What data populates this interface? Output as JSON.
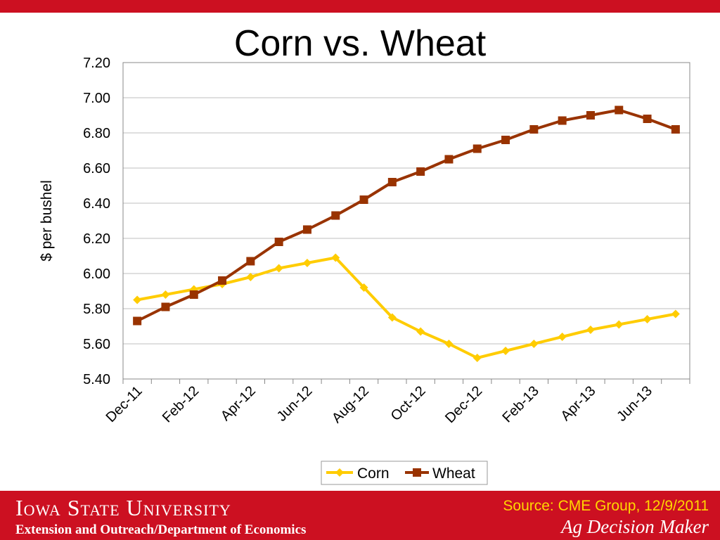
{
  "slide": {
    "title": "Corn vs. Wheat",
    "university": "Iowa State University",
    "department": "Extension and Outreach/Department of Economics",
    "source": "Source: CME Group, 12/9/2011",
    "brand": "Ag Decision Maker"
  },
  "colors": {
    "accent_red": "#cc1021",
    "corn": "#ffcc00",
    "wheat": "#993300",
    "source_text": "#ffd700"
  },
  "chart_data": {
    "type": "line",
    "title": "Corn vs. Wheat",
    "ylabel": "$ per bushel",
    "xlabel": "",
    "ylim": [
      5.4,
      7.2
    ],
    "yticks": [
      "7.20",
      "7.00",
      "6.80",
      "6.60",
      "6.40",
      "6.20",
      "6.00",
      "5.80",
      "5.60",
      "5.40"
    ],
    "x_tick_labels": [
      "Dec-11",
      "Feb-12",
      "Apr-12",
      "Jun-12",
      "Aug-12",
      "Oct-12",
      "Dec-12",
      "Feb-13",
      "Apr-13",
      "Jun-13"
    ],
    "grid": true,
    "legend_position": "bottom",
    "x": [
      "Dec-11",
      "Jan-12",
      "Feb-12",
      "Mar-12",
      "Apr-12",
      "May-12",
      "Jun-12",
      "Jul-12",
      "Aug-12",
      "Sep-12",
      "Oct-12",
      "Nov-12",
      "Dec-12",
      "Jan-13",
      "Feb-13",
      "Mar-13",
      "Apr-13",
      "May-13",
      "Jun-13",
      "Jul-13"
    ],
    "series": [
      {
        "name": "Corn",
        "marker": "diamond",
        "values": [
          5.85,
          5.88,
          5.91,
          5.94,
          5.98,
          6.03,
          6.06,
          6.09,
          5.92,
          5.75,
          5.67,
          5.6,
          5.52,
          5.56,
          5.6,
          5.64,
          5.68,
          5.71,
          5.74,
          5.77
        ]
      },
      {
        "name": "Wheat",
        "marker": "square",
        "values": [
          5.73,
          5.81,
          5.88,
          5.96,
          6.07,
          6.18,
          6.25,
          6.33,
          6.42,
          6.52,
          6.58,
          6.65,
          6.71,
          6.76,
          6.82,
          6.87,
          6.9,
          6.93,
          6.88,
          6.82
        ]
      }
    ]
  }
}
